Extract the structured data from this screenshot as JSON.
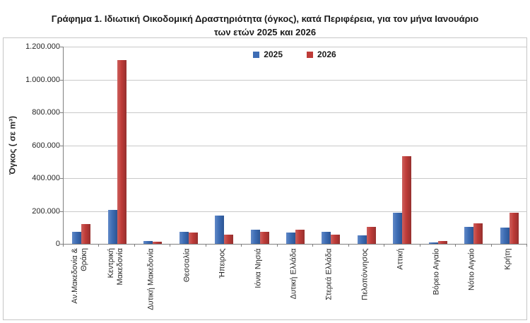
{
  "title": {
    "line1": "Γράφημα 1.  Ιδιωτική Οικοδομική Δραστηριότητα (όγκος), κατά Περιφέρεια, για τον μήνα Ιανουάριο",
    "line2": "των ετών 2025 και 2026"
  },
  "legend": [
    {
      "label": "2025",
      "color": "#3E6DB5"
    },
    {
      "label": "2026",
      "color": "#BE3B38"
    }
  ],
  "y_axis": {
    "title": "Όγκος ( σε  m³)",
    "tick_values": [
      0,
      200000,
      400000,
      600000,
      800000,
      1000000,
      1200000
    ],
    "tick_labels": [
      "0",
      "200.000",
      "400.000",
      "600.000",
      "800.000",
      "1.000.000",
      "1.200.000"
    ]
  },
  "chart_data": {
    "type": "bar",
    "title": "Γράφημα 1. Ιδιωτική Οικοδομική Δραστηριότητα (όγκος), κατά Περιφέρεια, για τον μήνα Ιανουάριο των ετών 2025 και 2026",
    "xlabel": "",
    "ylabel": "Όγκος ( σε  m³)",
    "ylim": [
      0,
      1200000
    ],
    "ytick_step": 200000,
    "grid": true,
    "legend_position": "top-center",
    "categories": [
      "Αν.Μακεδονία & Θράκη",
      "Κεντρική Μακεδονία",
      "Δυτική Μακεδονία",
      "Θεσσαλία",
      "Ήπειρος",
      "Ιόνια Νησιά",
      "Δυτική Ελλάδα",
      "Στερεά Ελλάδα",
      "Πελοπόννησος",
      "Αττική",
      "Βόρειο Αιγαίο",
      "Νότιο Αιγαίο",
      "Κρήτη"
    ],
    "category_display": [
      [
        "Αν.Μακεδονία &",
        "Θράκη"
      ],
      [
        "Κεντρική",
        "Μακεδονία"
      ],
      [
        "Δυτική Μακεδονία"
      ],
      [
        "Θεσσαλία"
      ],
      [
        "Ήπειρος"
      ],
      [
        "Ιόνια Νησιά"
      ],
      [
        "Δυτική Ελλάδα"
      ],
      [
        "Στερεά Ελλάδα"
      ],
      [
        "Πελοπόννησος"
      ],
      [
        "Αττική"
      ],
      [
        "Βόρειο Αιγαίο"
      ],
      [
        "Νότιο Αιγαίο"
      ],
      [
        "Κρήτη"
      ]
    ],
    "series": [
      {
        "name": "2025",
        "color": "#3E6DB5",
        "color_light": "#6189C7",
        "color_dark": "#2C5593",
        "values": [
          75000,
          205000,
          17000,
          75000,
          173000,
          85000,
          71000,
          72000,
          50000,
          188000,
          9000,
          105000,
          98000
        ]
      },
      {
        "name": "2026",
        "color": "#BE3B38",
        "color_light": "#CD605D",
        "color_dark": "#96302E",
        "values": [
          120000,
          1120000,
          11000,
          68000,
          57000,
          73000,
          85000,
          54000,
          103000,
          533000,
          19000,
          124000,
          190000
        ]
      }
    ]
  }
}
